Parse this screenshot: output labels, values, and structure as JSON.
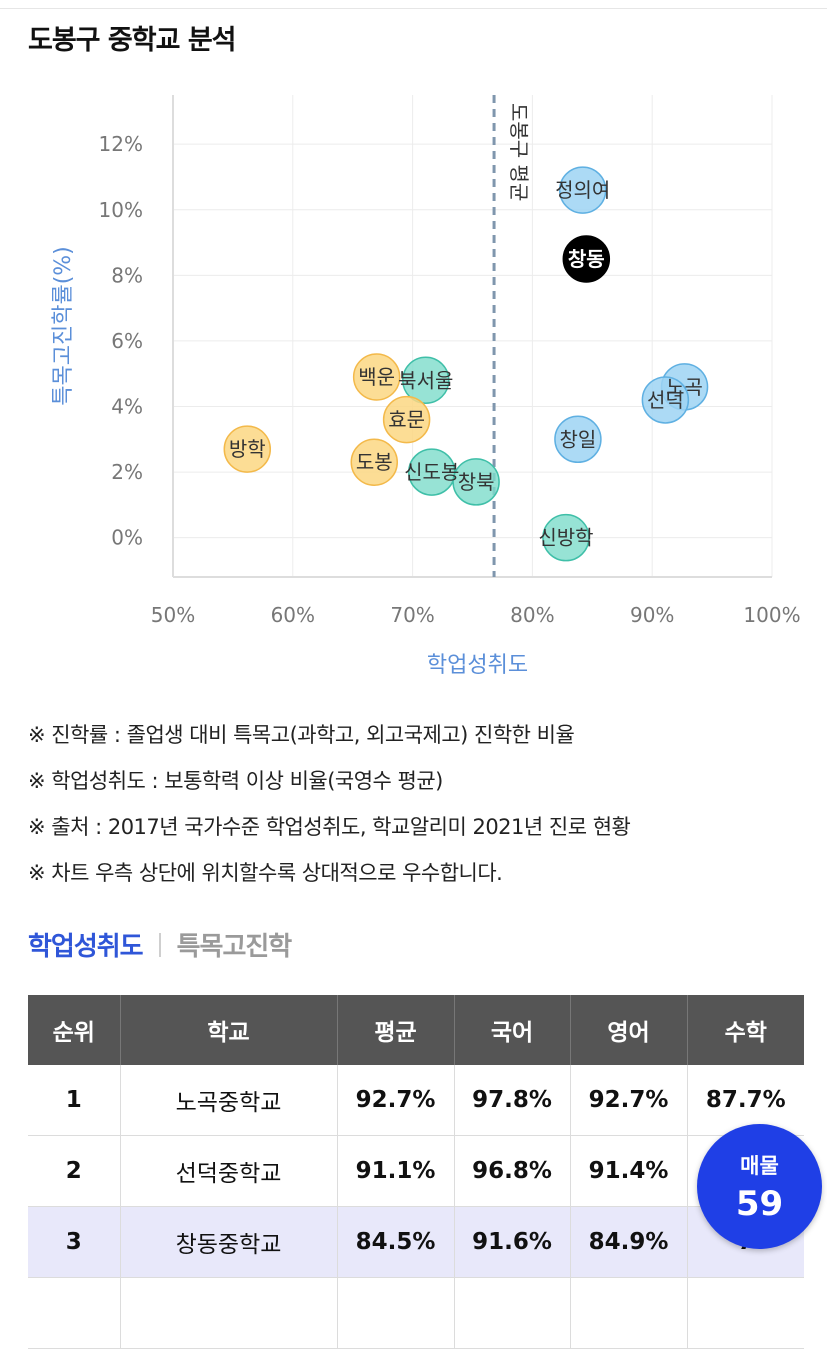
{
  "page": {
    "title": "도봉구 중학교 분석"
  },
  "chart_data": {
    "type": "scatter",
    "xlabel": "학업성취도",
    "ylabel": "특목고진학률(%)",
    "xlim": [
      50,
      100
    ],
    "ylim": [
      -1.2,
      13.5
    ],
    "x_ticks": [
      "50%",
      "60%",
      "70%",
      "80%",
      "90%",
      "100%"
    ],
    "x_tick_values": [
      50,
      60,
      70,
      80,
      90,
      100
    ],
    "y_ticks": [
      "0%",
      "2%",
      "4%",
      "6%",
      "8%",
      "10%",
      "12%"
    ],
    "y_tick_values": [
      0,
      2,
      4,
      6,
      8,
      10,
      12
    ],
    "grid": true,
    "reference_line": {
      "x": 76.8,
      "label": "도봉구 평균"
    },
    "colors": {
      "yellow": "#fcd783",
      "yellow_stroke": "#f3b94a",
      "teal": "#7ddccb",
      "teal_stroke": "#3fbfa8",
      "blue": "#9ed3f3",
      "blue_stroke": "#5fb0e2",
      "highlight": "#000000"
    },
    "points": [
      {
        "name": "정의여",
        "x": 84.2,
        "y": 10.6,
        "group": "blue"
      },
      {
        "name": "창동",
        "x": 84.5,
        "y": 8.5,
        "group": "highlight"
      },
      {
        "name": "노곡",
        "x": 92.7,
        "y": 4.6,
        "group": "blue"
      },
      {
        "name": "선덕",
        "x": 91.1,
        "y": 4.2,
        "group": "blue"
      },
      {
        "name": "창일",
        "x": 83.8,
        "y": 3.0,
        "group": "blue"
      },
      {
        "name": "신방학",
        "x": 82.8,
        "y": 0.0,
        "group": "teal"
      },
      {
        "name": "백운",
        "x": 67.0,
        "y": 4.9,
        "group": "yellow"
      },
      {
        "name": "북서울",
        "x": 71.1,
        "y": 4.8,
        "group": "teal"
      },
      {
        "name": "효문",
        "x": 69.5,
        "y": 3.6,
        "group": "yellow"
      },
      {
        "name": "방학",
        "x": 56.2,
        "y": 2.7,
        "group": "yellow"
      },
      {
        "name": "도봉",
        "x": 66.8,
        "y": 2.3,
        "group": "yellow"
      },
      {
        "name": "신도봉",
        "x": 71.6,
        "y": 2.0,
        "group": "teal"
      },
      {
        "name": "창북",
        "x": 75.3,
        "y": 1.7,
        "group": "teal"
      }
    ]
  },
  "notes": [
    "※ 진학률 : 졸업생 대비 특목고(과학고, 외고국제고) 진학한 비율",
    "※ 학업성취도 : 보통학력 이상 비율(국영수 평균)",
    "※ 출처 : 2017년 국가수준 학업성취도, 학교알리미 2021년 진로 현황",
    "※ 차트 우측 상단에 위치할수록 상대적으로 우수합니다."
  ],
  "tabs": {
    "active": "학업성취도",
    "inactive": "특목고진학"
  },
  "table": {
    "headers": [
      "순위",
      "학교",
      "평균",
      "국어",
      "영어",
      "수학"
    ],
    "rows": [
      [
        "1",
        "노곡중학교",
        "92.7%",
        "97.8%",
        "92.7%",
        "87.7%"
      ],
      [
        "2",
        "선덕중학교",
        "91.1%",
        "96.8%",
        "91.4%",
        ""
      ],
      [
        "3",
        "창동중학교",
        "84.5%",
        "91.6%",
        "84.9%",
        "7"
      ],
      [
        "",
        "",
        "",
        "",
        "",
        ""
      ]
    ]
  },
  "fab": {
    "label": "매물",
    "count": "59"
  }
}
